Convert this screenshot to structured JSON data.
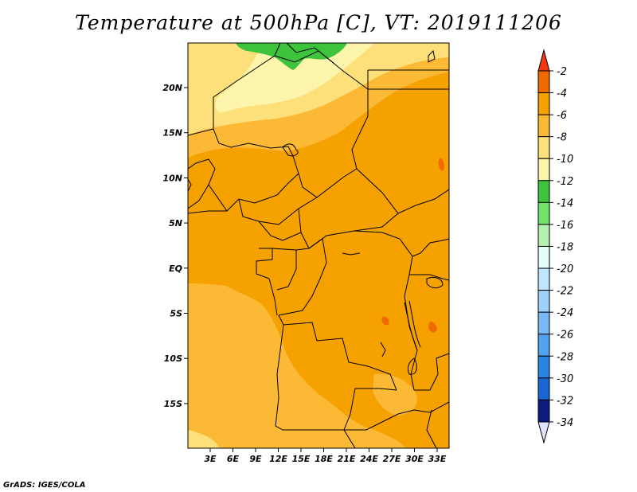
{
  "title": "Temperature at 500hPa [C], VT: 2019111206",
  "credit": "GrADS: IGES/COLA",
  "map": {
    "x_ticks": [
      "3E",
      "6E",
      "9E",
      "12E",
      "15E",
      "18E",
      "21E",
      "24E",
      "27E",
      "30E",
      "33E"
    ],
    "y_ticks": [
      "20N",
      "15N",
      "10N",
      "5N",
      "EQ",
      "5S",
      "10S",
      "15S"
    ],
    "colors": {
      "c_m4_m2": "#f06a00",
      "c_m6_m4": "#f5a100",
      "c_m8_m6": "#fbb935",
      "c_m10_m8": "#fde07a",
      "c_m12_m10": "#fef5ad",
      "c_m14_m12": "#3ec43c"
    }
  },
  "colorbar": {
    "labels": [
      "-2",
      "-4",
      "-6",
      "-8",
      "-10",
      "-12",
      "-14",
      "-16",
      "-18",
      "-20",
      "-22",
      "-24",
      "-26",
      "-28",
      "-30",
      "-32",
      "-34"
    ],
    "colors": [
      "#f06a00",
      "#f5a100",
      "#fbb935",
      "#fde07a",
      "#fef5ad",
      "#3ec43c",
      "#72e26e",
      "#b3f2ae",
      "#e4fbf9",
      "#bfe6ff",
      "#9fd2fb",
      "#79b9f5",
      "#53a2ef",
      "#2a84e6",
      "#1866d6",
      "#1349b4",
      "#0c1d80"
    ],
    "top_arrow_color": "#f2380e",
    "bottom_arrow_color": "#e2e3ff"
  }
}
